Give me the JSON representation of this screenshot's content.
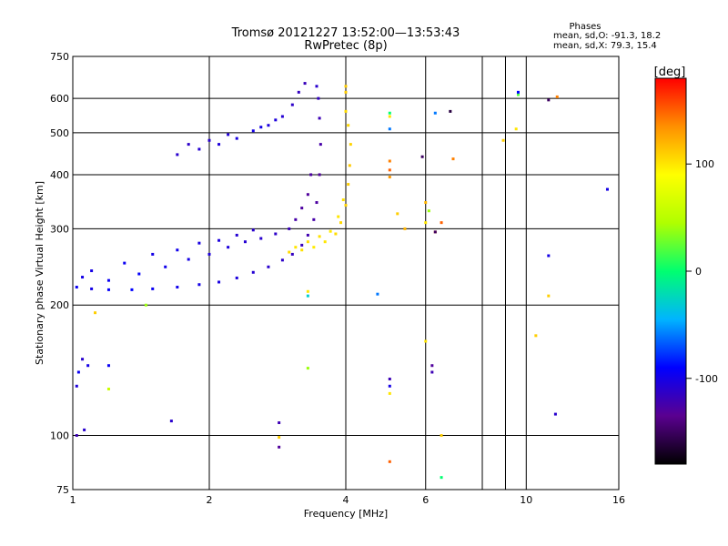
{
  "chart_data": {
    "type": "scatter",
    "title": "Tromsø 20121227 13:52:00—13:53:43",
    "subtitle": "RwPretec (8p)",
    "xlabel": "Frequency [MHz]",
    "ylabel": "Stationary phase Virtual Height [km]",
    "x_scale": "log",
    "y_scale": "log",
    "xlim": [
      1,
      16
    ],
    "ylim": [
      75,
      750
    ],
    "x_ticks": [
      1,
      2,
      4,
      6,
      10,
      16
    ],
    "x_gridlines": [
      2,
      4,
      6,
      8,
      9,
      10
    ],
    "y_ticks": [
      75,
      100,
      200,
      300,
      400,
      500,
      600,
      750
    ],
    "grid": true,
    "stats_header": "Phases",
    "stats": [
      "mean, sd,O:  -91.3, 18.2",
      "mean, sd,X:  79.3, 15.4"
    ],
    "colorbar": {
      "label": "[deg]",
      "range": [
        -180,
        180
      ],
      "ticks": [
        -100,
        0,
        100
      ],
      "colormap": [
        "#000000",
        "#5a0090",
        "#0000ff",
        "#00b4ff",
        "#00ff70",
        "#b0ff00",
        "#ffff00",
        "#ff9000",
        "#ff0000"
      ]
    },
    "series": [
      {
        "points": [
          [
            1.02,
            220,
            -95
          ],
          [
            1.1,
            218,
            -100
          ],
          [
            1.2,
            217,
            -92
          ],
          [
            1.35,
            217,
            -90
          ],
          [
            1.5,
            218,
            -95
          ],
          [
            1.7,
            220,
            -98
          ],
          [
            1.9,
            223,
            -100
          ],
          [
            2.1,
            226,
            -102
          ],
          [
            2.3,
            231,
            -104
          ],
          [
            2.5,
            238,
            -108
          ],
          [
            2.7,
            245,
            -110
          ],
          [
            2.9,
            254,
            -112
          ],
          [
            3.05,
            262,
            -115
          ],
          [
            3.2,
            275,
            -118
          ],
          [
            3.3,
            290,
            -122
          ],
          [
            3.4,
            315,
            -125
          ],
          [
            3.45,
            345,
            -128
          ],
          [
            3.5,
            400,
            -130
          ],
          [
            3.52,
            470,
            -125
          ],
          [
            3.5,
            540,
            -120
          ],
          [
            3.48,
            600,
            -115
          ],
          [
            3.45,
            640,
            -110
          ],
          [
            1.05,
            232,
            -100
          ],
          [
            1.2,
            228,
            -95
          ],
          [
            1.4,
            236,
            -92
          ],
          [
            1.6,
            245,
            -98
          ],
          [
            1.8,
            255,
            -100
          ],
          [
            2.0,
            262,
            -105
          ],
          [
            2.2,
            272,
            -104
          ],
          [
            2.4,
            280,
            -108
          ],
          [
            2.6,
            285,
            -110
          ],
          [
            2.8,
            292,
            -112
          ],
          [
            3.0,
            300,
            -118
          ],
          [
            3.1,
            315,
            -125
          ],
          [
            3.2,
            335,
            -128
          ],
          [
            3.3,
            360,
            -130
          ],
          [
            3.35,
            400,
            -128
          ],
          [
            1.1,
            240,
            -100
          ],
          [
            1.3,
            250,
            -95
          ],
          [
            1.5,
            262,
            -100
          ],
          [
            1.7,
            268,
            -98
          ],
          [
            1.9,
            278,
            -102
          ],
          [
            2.1,
            282,
            -104
          ],
          [
            2.3,
            290,
            -108
          ],
          [
            2.5,
            298,
            -110
          ]
        ]
      },
      {
        "points": [
          [
            3.0,
            265,
            105
          ],
          [
            3.2,
            268,
            102
          ],
          [
            3.4,
            272,
            98
          ],
          [
            3.6,
            280,
            100
          ],
          [
            3.8,
            292,
            104
          ],
          [
            3.9,
            310,
            106
          ],
          [
            4.0,
            340,
            108
          ],
          [
            4.05,
            380,
            110
          ],
          [
            4.08,
            420,
            112
          ],
          [
            4.1,
            470,
            108
          ],
          [
            4.05,
            520,
            106
          ],
          [
            4.0,
            560,
            104
          ],
          [
            4.0,
            620,
            110
          ],
          [
            3.1,
            272,
            100
          ],
          [
            3.3,
            280,
            104
          ],
          [
            3.5,
            288,
            102
          ],
          [
            3.7,
            296,
            98
          ],
          [
            3.85,
            320,
            100
          ],
          [
            3.95,
            350,
            102
          ]
        ]
      },
      {
        "points": [
          [
            1.7,
            445,
            -110
          ],
          [
            1.9,
            458,
            -108
          ],
          [
            2.1,
            470,
            -105
          ],
          [
            2.3,
            485,
            -102
          ],
          [
            2.5,
            505,
            -100
          ],
          [
            2.7,
            520,
            -104
          ],
          [
            2.9,
            545,
            -108
          ],
          [
            3.05,
            580,
            -112
          ],
          [
            3.15,
            620,
            -115
          ],
          [
            3.25,
            650,
            -118
          ],
          [
            1.8,
            470,
            -112
          ],
          [
            2.0,
            480,
            -110
          ],
          [
            2.2,
            495,
            -106
          ],
          [
            2.6,
            515,
            -100
          ],
          [
            2.8,
            535,
            -104
          ]
        ]
      },
      {
        "points": [
          [
            1.05,
            150,
            -110
          ],
          [
            1.08,
            145,
            -100
          ],
          [
            1.03,
            140,
            -95
          ],
          [
            1.02,
            130,
            -105
          ],
          [
            1.06,
            103,
            -110
          ],
          [
            1.02,
            100,
            -120
          ],
          [
            1.2,
            145,
            -95
          ],
          [
            1.2,
            128,
            60
          ],
          [
            1.12,
            192,
            110
          ],
          [
            1.45,
            200,
            40
          ],
          [
            1.65,
            108,
            -110
          ],
          [
            2.85,
            107,
            -120
          ],
          [
            2.85,
            94,
            -130
          ],
          [
            2.85,
            99,
            110
          ],
          [
            3.3,
            210,
            -30
          ],
          [
            3.3,
            215,
            100
          ],
          [
            3.3,
            143,
            40
          ],
          [
            4.0,
            640,
            110
          ],
          [
            4.7,
            212,
            -60
          ],
          [
            5.0,
            430,
            140
          ],
          [
            5.0,
            410,
            150
          ],
          [
            5.0,
            395,
            130
          ],
          [
            5.2,
            325,
            110
          ],
          [
            5.4,
            300,
            120
          ],
          [
            5.0,
            555,
            0
          ],
          [
            5.0,
            545,
            100
          ],
          [
            5.0,
            510,
            -60
          ],
          [
            5.0,
            135,
            -120
          ],
          [
            5.0,
            130,
            -100
          ],
          [
            5.0,
            125,
            100
          ],
          [
            5.0,
            87,
            150
          ],
          [
            5.9,
            440,
            -150
          ],
          [
            6.0,
            345,
            120
          ],
          [
            6.1,
            330,
            40
          ],
          [
            6.0,
            310,
            100
          ],
          [
            6.0,
            165,
            100
          ],
          [
            6.2,
            145,
            -130
          ],
          [
            6.2,
            140,
            -120
          ],
          [
            6.3,
            295,
            150
          ],
          [
            6.3,
            295,
            -150
          ],
          [
            6.3,
            555,
            -60
          ],
          [
            6.5,
            310,
            150
          ],
          [
            6.5,
            100,
            110
          ],
          [
            6.5,
            80,
            0
          ],
          [
            6.8,
            560,
            -160
          ],
          [
            6.9,
            435,
            140
          ],
          [
            8.9,
            480,
            110
          ],
          [
            9.5,
            510,
            100
          ],
          [
            9.6,
            612,
            20
          ],
          [
            9.6,
            620,
            -90
          ],
          [
            11.2,
            595,
            -150
          ],
          [
            11.7,
            605,
            140
          ],
          [
            11.2,
            260,
            -100
          ],
          [
            11.2,
            210,
            110
          ],
          [
            10.5,
            170,
            110
          ],
          [
            11.6,
            112,
            -110
          ],
          [
            15.1,
            370,
            -100
          ]
        ]
      }
    ]
  }
}
